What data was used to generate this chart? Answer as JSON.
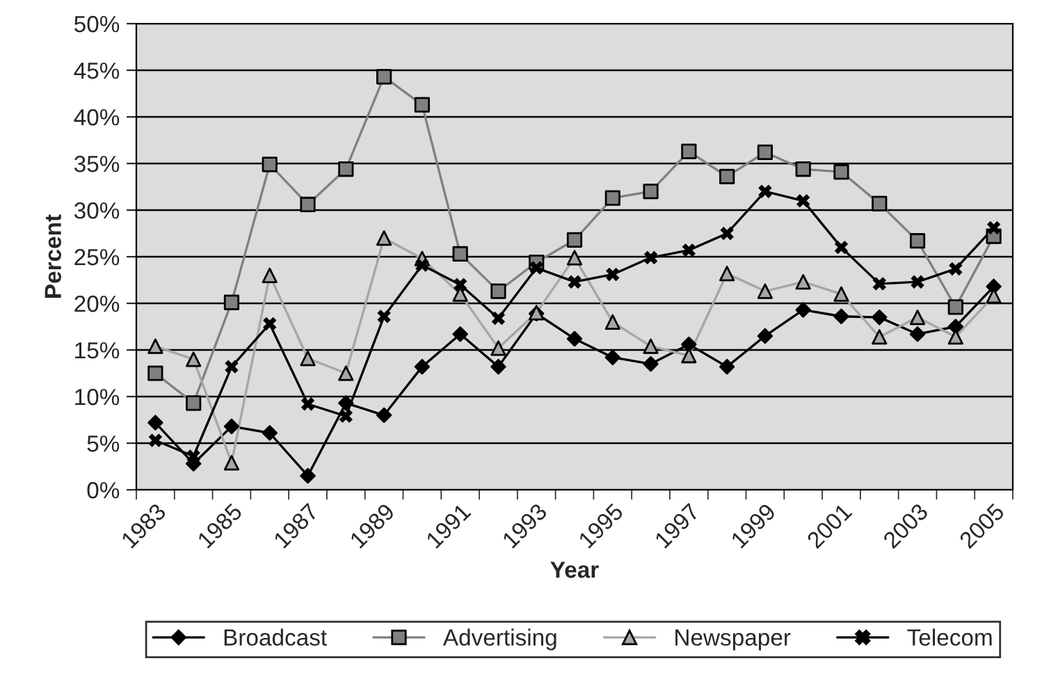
{
  "chart_data": {
    "type": "line",
    "xlabel": "Year",
    "ylabel": "Percent",
    "categories": [
      "1983",
      null,
      "1985",
      null,
      "1987",
      null,
      "1989",
      null,
      "1991",
      null,
      "1993",
      null,
      "1995",
      null,
      "1997",
      null,
      "1999",
      null,
      "2001",
      null,
      "2003",
      null,
      "2005"
    ],
    "series": [
      {
        "name": "Broadcast",
        "color": "#000000",
        "marker": "diamond",
        "values": [
          7.2,
          2.8,
          6.8,
          6.1,
          1.5,
          9.3,
          8.0,
          13.2,
          16.7,
          13.2,
          18.9,
          16.2,
          14.2,
          13.5,
          15.6,
          13.2,
          16.5,
          19.3,
          18.6,
          18.5,
          16.7,
          17.5,
          21.8
        ]
      },
      {
        "name": "Advertising",
        "color": "#808080",
        "marker": "square",
        "values": [
          12.5,
          9.3,
          20.1,
          34.9,
          30.6,
          34.4,
          44.3,
          41.3,
          25.3,
          21.3,
          24.4,
          26.8,
          31.3,
          32.0,
          36.3,
          33.6,
          36.2,
          34.4,
          34.1,
          30.7,
          26.7,
          19.6,
          27.2
        ]
      },
      {
        "name": "Newspaper",
        "color": "#a6a6a6",
        "marker": "triangle",
        "values": [
          15.4,
          14.0,
          2.9,
          23.0,
          14.1,
          12.5,
          27.0,
          24.8,
          21.0,
          15.2,
          19.0,
          24.9,
          18.0,
          15.4,
          14.4,
          23.2,
          21.3,
          22.3,
          21.0,
          16.4,
          18.5,
          16.4,
          20.8
        ]
      },
      {
        "name": "Telecom",
        "color": "#000000",
        "marker": "cross",
        "values": [
          5.3,
          3.6,
          13.2,
          17.8,
          9.2,
          7.9,
          18.6,
          24.1,
          22.0,
          18.4,
          23.8,
          22.3,
          23.1,
          24.9,
          25.7,
          27.5,
          32.0,
          31.0,
          26.0,
          22.1,
          22.3,
          23.7,
          28.1
        ]
      }
    ],
    "ylim": [
      0,
      50
    ],
    "yticks": [
      {
        "value": 0,
        "label": "0%"
      },
      {
        "value": 5,
        "label": "5%"
      },
      {
        "value": 10,
        "label": "10%"
      },
      {
        "value": 15,
        "label": "15%"
      },
      {
        "value": 20,
        "label": "20%"
      },
      {
        "value": 25,
        "label": "25%"
      },
      {
        "value": 30,
        "label": "30%"
      },
      {
        "value": 35,
        "label": "35%"
      },
      {
        "value": 40,
        "label": "40%"
      },
      {
        "value": 45,
        "label": "45%"
      },
      {
        "value": 50,
        "label": "50%"
      }
    ],
    "grid": "y",
    "legend": "bottom",
    "line_style": "solid"
  }
}
